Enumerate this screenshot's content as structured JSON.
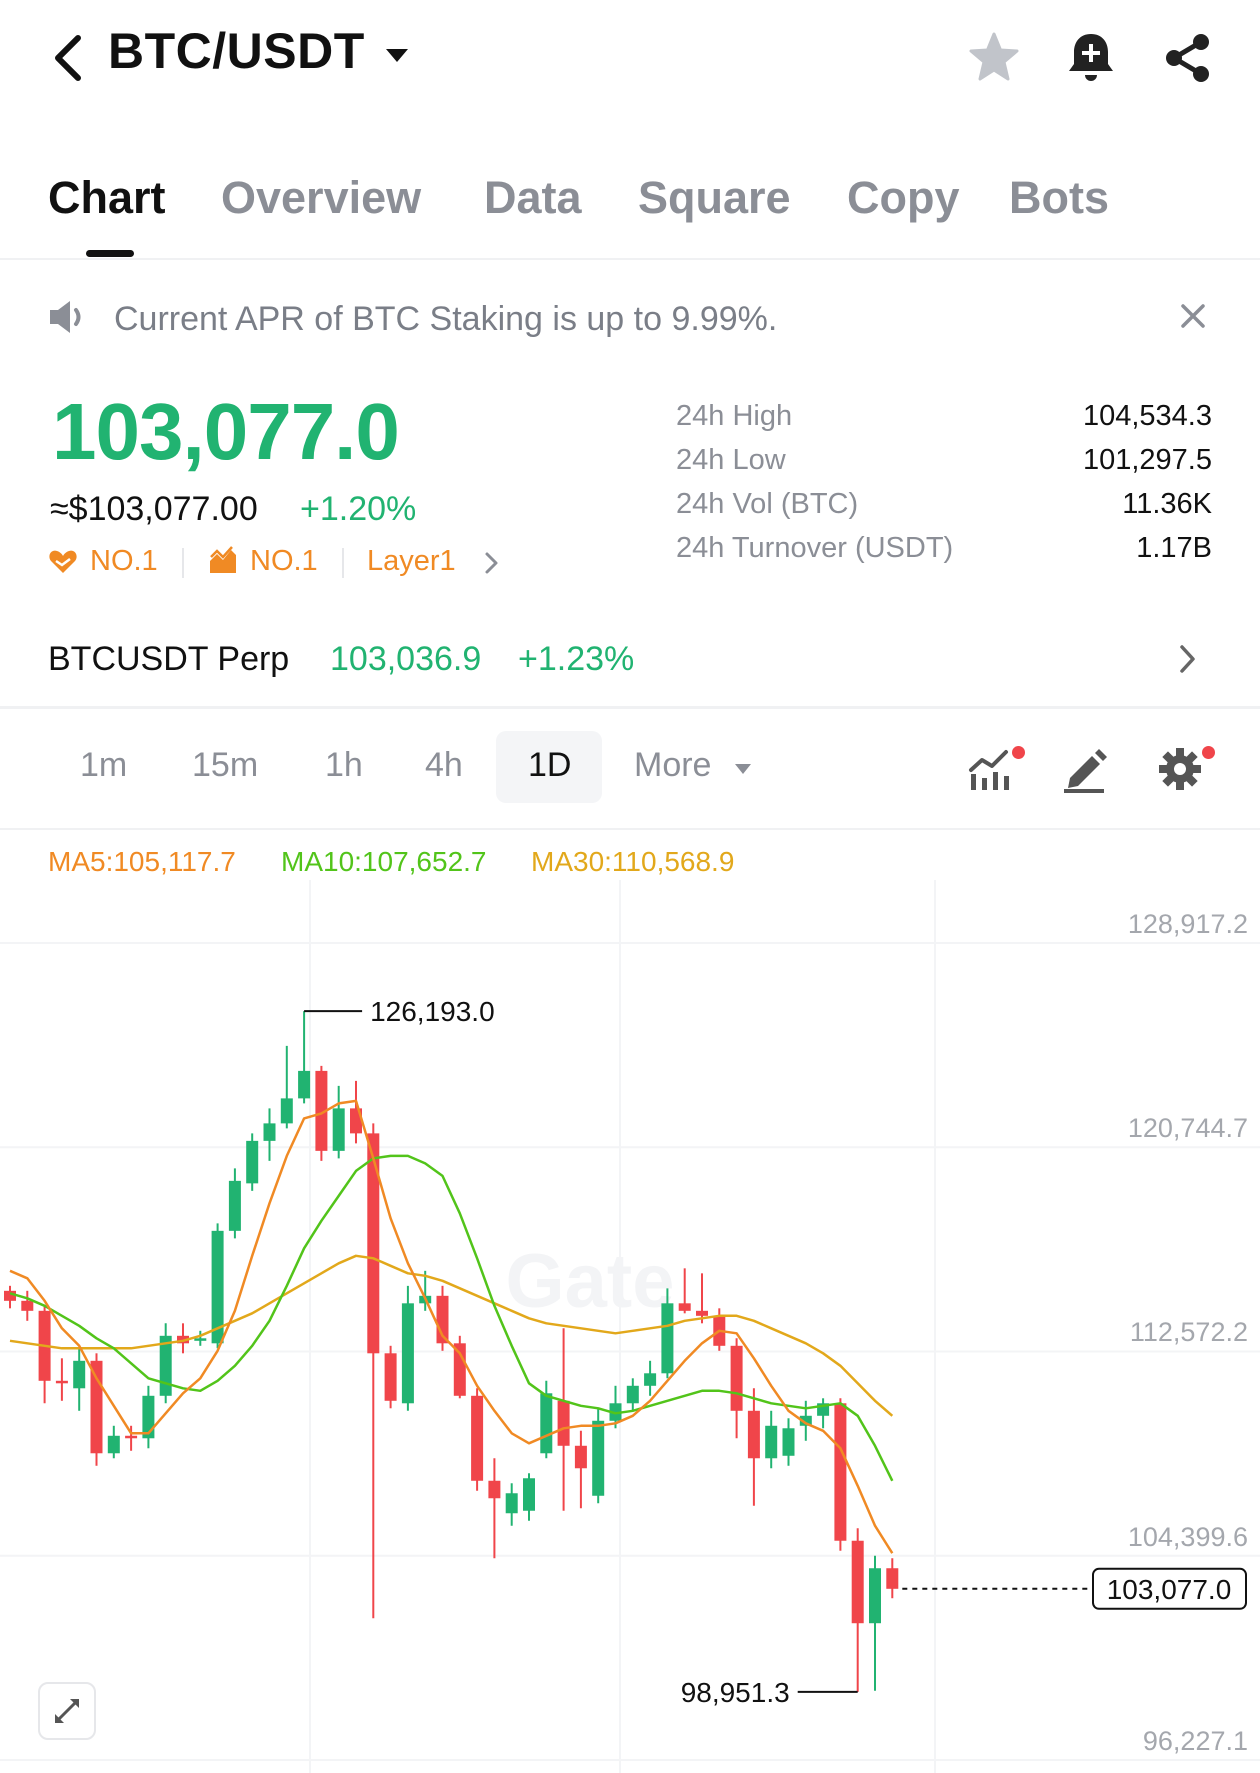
{
  "header": {
    "title": "BTC/USDT",
    "icons": [
      "back-arrow-icon",
      "caret-down-icon",
      "star-icon",
      "bell-plus-icon",
      "share-icon"
    ]
  },
  "tabs": [
    {
      "label": "Chart",
      "active": true
    },
    {
      "label": "Overview"
    },
    {
      "label": "Data"
    },
    {
      "label": "Square"
    },
    {
      "label": "Copy"
    },
    {
      "label": "Bots"
    }
  ],
  "notice": {
    "text": "Current APR of BTC Staking is up to 9.99%."
  },
  "ticker": {
    "last_price": "103,077.0",
    "approx_usd": "≈$103,077.00",
    "change": "+1.20%",
    "tags": [
      "NO.1",
      "NO.1",
      "Layer1"
    ],
    "stats": [
      {
        "label": "24h High",
        "value": "104,534.3"
      },
      {
        "label": "24h Low",
        "value": "101,297.5"
      },
      {
        "label": "24h Vol (BTC)",
        "value": "11.36K"
      },
      {
        "label": "24h Turnover (USDT)",
        "value": "1.17B"
      }
    ]
  },
  "perp": {
    "name": "BTCUSDT Perp",
    "price": "103,036.9",
    "change": "+1.23%"
  },
  "intervals": {
    "items": [
      "1m",
      "15m",
      "1h",
      "4h",
      "1D"
    ],
    "active": "1D",
    "more": "More"
  },
  "ma": {
    "ma5": "MA5:105,117.7",
    "ma10": "MA10:107,652.7",
    "ma30": "MA30:110,568.9"
  },
  "colors": {
    "up": "#21b371",
    "down": "#f0454a",
    "accent": "#f08a24"
  },
  "chart_data": {
    "type": "candlestick",
    "ytick_labels": [
      "128,917.2",
      "120,744.7",
      "112,572.2",
      "104,399.6",
      "96,227.1"
    ],
    "high_label": "126,193.0",
    "low_label": "98,951.3",
    "last_label": "103,077.0",
    "ylim": [
      96227.1,
      128917.2
    ],
    "watermark": "Gate",
    "candles": [
      {
        "o": 115000,
        "h": 115200,
        "l": 114300,
        "c": 114600
      },
      {
        "o": 114600,
        "h": 115000,
        "l": 113800,
        "c": 114200
      },
      {
        "o": 114200,
        "h": 114400,
        "l": 110500,
        "c": 111400
      },
      {
        "o": 111400,
        "h": 112300,
        "l": 110600,
        "c": 111300
      },
      {
        "o": 111100,
        "h": 112700,
        "l": 110200,
        "c": 112200
      },
      {
        "o": 112200,
        "h": 112500,
        "l": 108000,
        "c": 108500
      },
      {
        "o": 108500,
        "h": 109600,
        "l": 108300,
        "c": 109200
      },
      {
        "o": 109200,
        "h": 109600,
        "l": 108600,
        "c": 109100
      },
      {
        "o": 109100,
        "h": 111200,
        "l": 108700,
        "c": 110800
      },
      {
        "o": 110800,
        "h": 113700,
        "l": 110500,
        "c": 113200
      },
      {
        "o": 113200,
        "h": 113700,
        "l": 112500,
        "c": 112900
      },
      {
        "o": 113000,
        "h": 113400,
        "l": 112800,
        "c": 113100
      },
      {
        "o": 112900,
        "h": 117700,
        "l": 112700,
        "c": 117400
      },
      {
        "o": 117400,
        "h": 119900,
        "l": 117100,
        "c": 119400
      },
      {
        "o": 119300,
        "h": 121300,
        "l": 119000,
        "c": 121000
      },
      {
        "o": 121000,
        "h": 122300,
        "l": 120200,
        "c": 121700
      },
      {
        "o": 121700,
        "h": 124800,
        "l": 121500,
        "c": 122700
      },
      {
        "o": 122700,
        "h": 126193,
        "l": 122500,
        "c": 123800
      },
      {
        "o": 123800,
        "h": 124000,
        "l": 120200,
        "c": 120600
      },
      {
        "o": 120600,
        "h": 123200,
        "l": 120300,
        "c": 122300
      },
      {
        "o": 122300,
        "h": 123400,
        "l": 120900,
        "c": 121300
      },
      {
        "o": 121300,
        "h": 121700,
        "l": 101900,
        "c": 112500
      },
      {
        "o": 112500,
        "h": 112800,
        "l": 110300,
        "c": 110600
      },
      {
        "o": 110500,
        "h": 115200,
        "l": 110200,
        "c": 114500
      },
      {
        "o": 114500,
        "h": 115800,
        "l": 114200,
        "c": 114800
      },
      {
        "o": 114800,
        "h": 115200,
        "l": 112600,
        "c": 112900
      },
      {
        "o": 112900,
        "h": 113200,
        "l": 110700,
        "c": 110800
      },
      {
        "o": 110800,
        "h": 111100,
        "l": 107000,
        "c": 107400
      },
      {
        "o": 107400,
        "h": 108300,
        "l": 104300,
        "c": 106700
      },
      {
        "o": 106100,
        "h": 107300,
        "l": 105600,
        "c": 106900
      },
      {
        "o": 106200,
        "h": 107700,
        "l": 105800,
        "c": 107500
      },
      {
        "o": 108500,
        "h": 111400,
        "l": 108300,
        "c": 110900
      },
      {
        "o": 110600,
        "h": 113500,
        "l": 106200,
        "c": 108800
      },
      {
        "o": 108800,
        "h": 109400,
        "l": 106300,
        "c": 107900
      },
      {
        "o": 106800,
        "h": 110300,
        "l": 106500,
        "c": 109800
      },
      {
        "o": 109800,
        "h": 111200,
        "l": 109500,
        "c": 110500
      },
      {
        "o": 110500,
        "h": 111500,
        "l": 110200,
        "c": 111200
      },
      {
        "o": 111200,
        "h": 112200,
        "l": 110800,
        "c": 111700
      },
      {
        "o": 111700,
        "h": 115100,
        "l": 111500,
        "c": 114500
      },
      {
        "o": 114500,
        "h": 115900,
        "l": 114100,
        "c": 114200
      },
      {
        "o": 114200,
        "h": 115700,
        "l": 113700,
        "c": 114000
      },
      {
        "o": 114000,
        "h": 114300,
        "l": 112600,
        "c": 112800
      },
      {
        "o": 112800,
        "h": 113100,
        "l": 109100,
        "c": 110200
      },
      {
        "o": 110200,
        "h": 111100,
        "l": 106400,
        "c": 108300
      },
      {
        "o": 108300,
        "h": 110200,
        "l": 107900,
        "c": 109600
      },
      {
        "o": 108400,
        "h": 109900,
        "l": 108000,
        "c": 109500
      },
      {
        "o": 109600,
        "h": 110600,
        "l": 109000,
        "c": 110000
      },
      {
        "o": 110000,
        "h": 110700,
        "l": 109500,
        "c": 110500
      },
      {
        "o": 110500,
        "h": 110700,
        "l": 104600,
        "c": 105000
      },
      {
        "o": 105000,
        "h": 105500,
        "l": 98951.3,
        "c": 101700
      },
      {
        "o": 101700,
        "h": 104400,
        "l": 99000,
        "c": 103900
      },
      {
        "o": 103900,
        "h": 104300,
        "l": 102700,
        "c": 103077
      }
    ],
    "ma5": [
      115800,
      115500,
      114600,
      113500,
      112800,
      111500,
      110400,
      109300,
      109300,
      110100,
      110900,
      111500,
      112600,
      114200,
      116400,
      118500,
      120400,
      121900,
      122100,
      122500,
      122600,
      120300,
      117900,
      116100,
      114700,
      113200,
      112500,
      111200,
      110200,
      109300,
      108900,
      109200,
      109500,
      109600,
      109600,
      109700,
      110000,
      110600,
      111400,
      112200,
      112900,
      113400,
      113300,
      112300,
      111200,
      110200,
      109700,
      109400,
      108700,
      107200,
      105600,
      104500
    ],
    "ma10": [
      114900,
      114700,
      114400,
      114000,
      113600,
      113100,
      112700,
      112100,
      111500,
      111300,
      111100,
      111000,
      111400,
      112000,
      112800,
      113800,
      115200,
      116700,
      117800,
      118800,
      119800,
      120300,
      120400,
      120400,
      120100,
      119600,
      118100,
      116300,
      114400,
      112800,
      111300,
      110800,
      110600,
      110400,
      110300,
      110100,
      110200,
      110400,
      110600,
      110800,
      111000,
      111000,
      110900,
      110700,
      110500,
      110400,
      110300,
      110400,
      110500,
      110000,
      108800,
      107400
    ],
    "ma30": [
      113000,
      112900,
      112800,
      112700,
      112700,
      112700,
      112700,
      112700,
      112800,
      112900,
      113000,
      113200,
      113500,
      113800,
      114100,
      114500,
      114900,
      115300,
      115700,
      116100,
      116400,
      116300,
      116000,
      115700,
      115600,
      115400,
      115100,
      114800,
      114500,
      114200,
      113900,
      113700,
      113600,
      113500,
      113400,
      113300,
      113400,
      113500,
      113600,
      113800,
      113900,
      114000,
      114000,
      113800,
      113500,
      113200,
      112900,
      112500,
      112000,
      111300,
      110600,
      110000
    ]
  }
}
